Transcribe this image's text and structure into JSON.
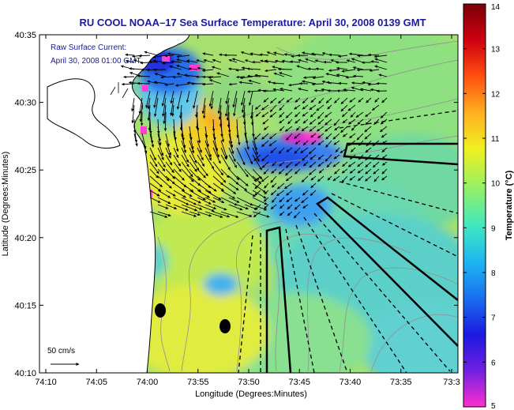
{
  "title": "RU COOL  NOAA–17  Sea Surface Temperature:  April 30, 2008 0139 GMT",
  "inset": {
    "line1": "Raw Surface Current:",
    "line2": "April 30, 2008 01:00 GMT"
  },
  "x_axis": {
    "label": "Longitude (Degrees:Minutes)",
    "ticks": [
      "74:10",
      "74:05",
      "74:00",
      "73:55",
      "73:50",
      "73:45",
      "73:40",
      "73:35",
      "73:3"
    ]
  },
  "y_axis": {
    "label": "Latitude (Degrees:Minutes)",
    "ticks": [
      "40:35",
      "40:30",
      "40:25",
      "40:20",
      "40:15",
      "40:10"
    ]
  },
  "scale_vector": {
    "label": "50 cm/s"
  },
  "colorbar": {
    "title": "Temperature (°C)",
    "ticks": [
      "14",
      "13",
      "12",
      "11",
      "10",
      "9",
      "8",
      "7",
      "6",
      "5"
    ],
    "min": 5,
    "max": 14,
    "colors": [
      "#ff2fd0",
      "#7020e0",
      "#1a1ae0",
      "#1a6ff0",
      "#1fb6f0",
      "#40e8c0",
      "#9af060",
      "#f0f020",
      "#ffb020",
      "#ff5010",
      "#d00010",
      "#7a0008"
    ]
  },
  "colors": {
    "land": "#ffffff",
    "title": "#1a1aa0",
    "inset_text": "#1a1aa0",
    "axis": "#000000",
    "vector": "#000000"
  },
  "icons": {
    "current_vector": "arrow-icon",
    "hf_radar_site": "filled-circle"
  }
}
